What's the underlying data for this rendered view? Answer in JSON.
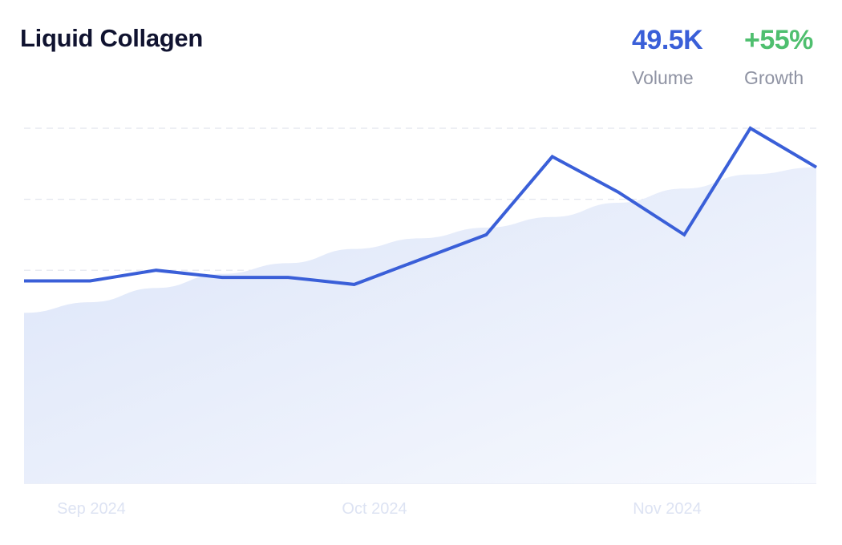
{
  "header": {
    "title": "Liquid Collagen",
    "volume_value": "49.5K",
    "volume_label": "Volume",
    "growth_value": "+55%",
    "growth_label": "Growth"
  },
  "colors": {
    "line": "#3a5fd8",
    "area_top": "#dbe4f8",
    "area_bottom": "#f7f9fe",
    "grid": "#e2e5ee",
    "volume": "#3a5fd8",
    "growth": "#4fbf6f",
    "tick_text": "#dde3f3"
  },
  "chart_data": {
    "type": "line",
    "title": "Liquid Collagen",
    "xlabel": "",
    "ylabel": "",
    "x_ticks": [
      "Sep 2024",
      "Oct 2024",
      "Nov 2024"
    ],
    "grid": true,
    "gridlines": 5,
    "ylim": [
      0,
      100
    ],
    "series": [
      {
        "values": [
          57,
          57,
          60,
          58,
          58,
          56,
          63,
          70,
          92,
          82,
          70,
          100,
          89
        ]
      }
    ],
    "trend": {
      "values": [
        48,
        51,
        55,
        59,
        62,
        66,
        69,
        72,
        75,
        79,
        83,
        87,
        89
      ]
    }
  }
}
